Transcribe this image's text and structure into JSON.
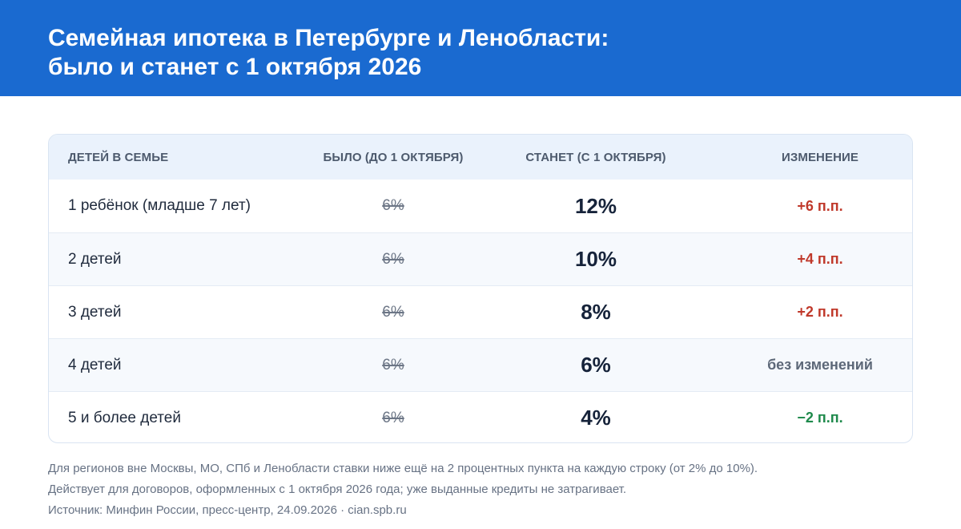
{
  "header": {
    "title_line1": "Семейная ипотека в Петербурге и Ленобласти:",
    "title_line2": "было и станет с 1 октября 2026",
    "background_color": "#1a6ad0"
  },
  "table": {
    "columns": {
      "children": "ДЕТЕЙ В СЕМЬЕ",
      "before": "БЫЛО (ДО 1 ОКТЯБРЯ)",
      "after": "СТАНЕТ (С 1 ОКТЯБРЯ)",
      "change": "ИЗМЕНЕНИЕ"
    },
    "rows": [
      {
        "children": "1 ребёнок (младше 7 лет)",
        "before": "6%",
        "after": "12%",
        "change": "+6 п.п.",
        "change_type": "increase"
      },
      {
        "children": "2 детей",
        "before": "6%",
        "after": "10%",
        "change": "+4 п.п.",
        "change_type": "increase"
      },
      {
        "children": "3 детей",
        "before": "6%",
        "after": "8%",
        "change": "+2 п.п.",
        "change_type": "increase"
      },
      {
        "children": "4 детей",
        "before": "6%",
        "after": "6%",
        "change": "без изменений",
        "change_type": "same"
      },
      {
        "children": "5 и более детей",
        "before": "6%",
        "after": "4%",
        "change": "−2 п.п.",
        "change_type": "decrease"
      }
    ]
  },
  "colors": {
    "increase": "#c0392b",
    "decrease": "#1f8a4c",
    "same": "#5d6878"
  },
  "notes": {
    "line1": "Для регионов вне Москвы, МО, СПб и Ленобласти ставки ниже ещё на 2 процентных пункта на каждую строку (от 2% до 10%).",
    "line2": "Действует для договоров, оформленных с 1 октября 2026 года; уже выданные кредиты не затрагивает.",
    "line3": "Источник: Минфин России, пресс-центр, 24.09.2026 · cian.spb.ru"
  }
}
